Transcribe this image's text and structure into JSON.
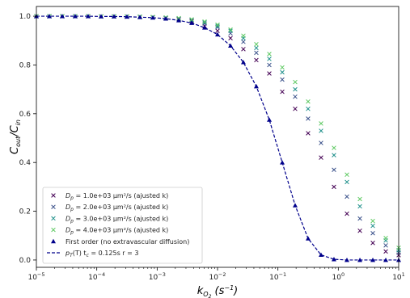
{
  "chart_data": {
    "type": "scatter",
    "xlabel": "k_{O_2} (s^{-1})",
    "ylabel": "C_{out}/C_{in}",
    "x_scale": "log",
    "xlim": [
      1e-05,
      10
    ],
    "ylim": [
      -0.03,
      1.04
    ],
    "x_ticks": [
      {
        "value": 1e-05,
        "base": "10",
        "exp": "−5"
      },
      {
        "value": 0.0001,
        "base": "10",
        "exp": "−4"
      },
      {
        "value": 0.001,
        "base": "10",
        "exp": "−3"
      },
      {
        "value": 0.01,
        "base": "10",
        "exp": "−2"
      },
      {
        "value": 0.1,
        "base": "10",
        "exp": "−1"
      },
      {
        "value": 1,
        "base": "10",
        "exp": "0"
      },
      {
        "value": 10,
        "base": "10",
        "exp": "1"
      }
    ],
    "y_ticks": [
      {
        "value": 0.0,
        "label": "0.0"
      },
      {
        "value": 0.2,
        "label": "0.2"
      },
      {
        "value": 0.4,
        "label": "0.4"
      },
      {
        "value": 0.6,
        "label": "0.6"
      },
      {
        "value": 0.8,
        "label": "0.8"
      },
      {
        "value": 1.0,
        "label": "1.0"
      }
    ],
    "grid": false,
    "legend_placement": "lower-left",
    "series": [
      {
        "name": "D_p = 1.0e+03 μm²/s (ajusted k)",
        "marker": "x",
        "color": "#440154",
        "x": [
          1e-05,
          1.64e-05,
          2.68e-05,
          4.39e-05,
          7.2e-05,
          0.000118,
          0.000193,
          0.000316,
          0.000518,
          0.000848,
          0.00139,
          0.00228,
          0.00373,
          0.00611,
          0.01,
          0.0164,
          0.0268,
          0.0439,
          0.072,
          0.118,
          0.193,
          0.316,
          0.518,
          0.848,
          1.39,
          2.28,
          3.73,
          6.11,
          10.0
        ],
        "y": [
          1.0,
          1.0,
          1.0,
          1.0,
          1.0,
          0.999,
          0.999,
          0.998,
          0.997,
          0.995,
          0.992,
          0.987,
          0.98,
          0.96,
          0.94,
          0.91,
          0.865,
          0.82,
          0.765,
          0.69,
          0.62,
          0.52,
          0.42,
          0.3,
          0.19,
          0.12,
          0.07,
          0.035,
          0.02
        ]
      },
      {
        "name": "D_p = 2.0e+03 μm²/s (ajusted k)",
        "marker": "x",
        "color": "#3b528b",
        "x": [
          1e-05,
          1.64e-05,
          2.68e-05,
          4.39e-05,
          7.2e-05,
          0.000118,
          0.000193,
          0.000316,
          0.000518,
          0.000848,
          0.00139,
          0.00228,
          0.00373,
          0.00611,
          0.01,
          0.0164,
          0.0268,
          0.0439,
          0.072,
          0.118,
          0.193,
          0.316,
          0.518,
          0.848,
          1.39,
          2.28,
          3.73,
          6.11,
          10.0
        ],
        "y": [
          1.0,
          1.0,
          1.0,
          1.0,
          1.0,
          0.999,
          0.999,
          0.998,
          0.997,
          0.995,
          0.993,
          0.989,
          0.983,
          0.97,
          0.955,
          0.93,
          0.895,
          0.85,
          0.8,
          0.74,
          0.67,
          0.58,
          0.48,
          0.37,
          0.26,
          0.17,
          0.11,
          0.06,
          0.03
        ]
      },
      {
        "name": "D_p = 3.0e+03 μm²/s (ajusted k)",
        "marker": "x",
        "color": "#21918c",
        "x": [
          1e-05,
          1.64e-05,
          2.68e-05,
          4.39e-05,
          7.2e-05,
          0.000118,
          0.000193,
          0.000316,
          0.000518,
          0.000848,
          0.00139,
          0.00228,
          0.00373,
          0.00611,
          0.01,
          0.0164,
          0.0268,
          0.0439,
          0.072,
          0.118,
          0.193,
          0.316,
          0.518,
          0.848,
          1.39,
          2.28,
          3.73,
          6.11,
          10.0
        ],
        "y": [
          1.0,
          1.0,
          1.0,
          1.0,
          1.0,
          0.999,
          0.999,
          0.999,
          0.998,
          0.996,
          0.994,
          0.991,
          0.985,
          0.975,
          0.96,
          0.94,
          0.91,
          0.87,
          0.825,
          0.77,
          0.7,
          0.62,
          0.53,
          0.43,
          0.32,
          0.22,
          0.14,
          0.08,
          0.04
        ]
      },
      {
        "name": "D_p = 4.0e+03 μm²/s (ajusted k)",
        "marker": "x",
        "color": "#5ec962",
        "x": [
          1e-05,
          1.64e-05,
          2.68e-05,
          4.39e-05,
          7.2e-05,
          0.000118,
          0.000193,
          0.000316,
          0.000518,
          0.000848,
          0.00139,
          0.00228,
          0.00373,
          0.00611,
          0.01,
          0.0164,
          0.0268,
          0.0439,
          0.072,
          0.118,
          0.193,
          0.316,
          0.518,
          0.848,
          1.39,
          2.28,
          3.73,
          6.11,
          10.0
        ],
        "y": [
          1.0,
          1.0,
          1.0,
          1.0,
          1.0,
          0.999,
          0.999,
          0.999,
          0.998,
          0.997,
          0.995,
          0.992,
          0.987,
          0.978,
          0.965,
          0.945,
          0.92,
          0.885,
          0.845,
          0.79,
          0.73,
          0.65,
          0.56,
          0.46,
          0.35,
          0.25,
          0.16,
          0.09,
          0.05
        ]
      },
      {
        "name": "First order (no extravascular diffusion)",
        "marker": "triangle",
        "color": "#00008b",
        "x": [
          1e-05,
          1.64e-05,
          2.68e-05,
          4.39e-05,
          7.2e-05,
          0.000118,
          0.000193,
          0.000316,
          0.000518,
          0.000848,
          0.00139,
          0.00228,
          0.00373,
          0.00611,
          0.01,
          0.0164,
          0.0268,
          0.0439,
          0.072,
          0.118,
          0.193,
          0.316,
          0.518,
          0.848,
          1.39,
          2.28,
          3.73,
          6.11,
          10.0
        ],
        "y": [
          1.0,
          1.0,
          1.0,
          1.0,
          1.0,
          0.999,
          0.999,
          0.998,
          0.996,
          0.994,
          0.99,
          0.983,
          0.972,
          0.953,
          0.925,
          0.879,
          0.811,
          0.712,
          0.575,
          0.4,
          0.224,
          0.088,
          0.021,
          0.003,
          0.0,
          0.0,
          0.0,
          0.0,
          0.0
        ]
      },
      {
        "name": "p_T(T) t_c = 0.125s r = 3",
        "marker": "dashed-line",
        "color": "#00008b",
        "x": [
          1e-05,
          1.64e-05,
          2.68e-05,
          4.39e-05,
          7.2e-05,
          0.000118,
          0.000193,
          0.000316,
          0.000518,
          0.000848,
          0.00139,
          0.00228,
          0.00373,
          0.00611,
          0.01,
          0.0164,
          0.0268,
          0.0439,
          0.072,
          0.118,
          0.193,
          0.316,
          0.518,
          0.848,
          1.39,
          2.28,
          3.73,
          6.11,
          10.0
        ],
        "y": [
          1.0,
          1.0,
          1.0,
          1.0,
          1.0,
          0.999,
          0.999,
          0.998,
          0.996,
          0.994,
          0.99,
          0.983,
          0.972,
          0.953,
          0.925,
          0.879,
          0.811,
          0.712,
          0.575,
          0.4,
          0.224,
          0.088,
          0.021,
          0.003,
          0.0,
          0.0,
          0.0,
          0.0,
          0.0
        ]
      }
    ],
    "legend": {
      "entries": [
        {
          "marker": "x",
          "color": "#440154",
          "prefix": "D",
          "sub": "p",
          "text": " = 1.0e+03 μm²/s (ajusted k)"
        },
        {
          "marker": "x",
          "color": "#3b528b",
          "prefix": "D",
          "sub": "p",
          "text": " = 2.0e+03 μm²/s (ajusted k)"
        },
        {
          "marker": "x",
          "color": "#21918c",
          "prefix": "D",
          "sub": "p",
          "text": " = 3.0e+03 μm²/s (ajusted k)"
        },
        {
          "marker": "x",
          "color": "#5ec962",
          "prefix": "D",
          "sub": "p",
          "text": " = 4.0e+03 μm²/s (ajusted k)"
        },
        {
          "marker": "triangle",
          "color": "#00008b",
          "prefix": "",
          "sub": "",
          "text": "First order (no extravascular diffusion)"
        },
        {
          "marker": "dashed",
          "color": "#00008b",
          "prefix": "p",
          "sub": "T",
          "text": "(T) t",
          "sub2": "c",
          "text2": " = 0.125s r = 3"
        }
      ]
    }
  }
}
